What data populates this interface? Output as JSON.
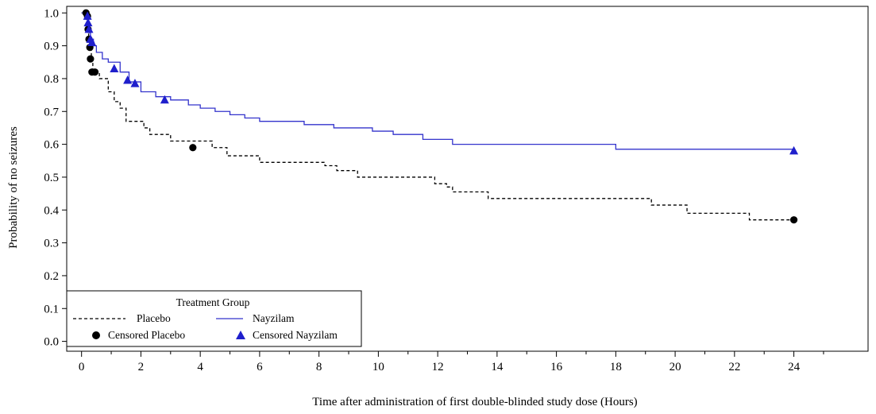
{
  "chart_data": {
    "type": "line",
    "xlabel": "Time after administration of first double-blinded study dose (Hours)",
    "ylabel": "Probability of no seizures",
    "xlim": [
      -0.5,
      26.5
    ],
    "ylim": [
      -0.03,
      1.02
    ],
    "x_ticks": [
      0,
      2,
      4,
      6,
      8,
      10,
      12,
      14,
      16,
      18,
      20,
      22,
      24
    ],
    "x_tick_labels": [
      "0",
      "2",
      "4",
      "6",
      "8",
      "10",
      "12",
      "14",
      "16",
      "18",
      "20",
      "22",
      "24"
    ],
    "y_ticks": [
      0.0,
      0.1,
      0.2,
      0.3,
      0.4,
      0.5,
      0.6,
      0.7,
      0.8,
      0.9,
      1.0
    ],
    "y_tick_labels": [
      "0.0",
      "0.1",
      "0.2",
      "0.3",
      "0.4",
      "0.5",
      "0.6",
      "0.7",
      "0.8",
      "0.9",
      "1.0"
    ],
    "grid": false,
    "legend": {
      "title": "Treatment Group",
      "placement": "bottom-left",
      "entries": [
        "Placebo",
        "Nayzilam",
        "Censored Placebo",
        "Censored Nayzilam"
      ]
    },
    "series": [
      {
        "name": "Placebo",
        "style": "dashed-step",
        "color": "#000000",
        "x": [
          0.0,
          0.2,
          0.24,
          0.28,
          0.33,
          0.38,
          0.6,
          0.9,
          1.1,
          1.3,
          1.5,
          2.1,
          2.3,
          3.0,
          4.4,
          4.9,
          6.0,
          8.2,
          8.6,
          9.3,
          11.9,
          12.3,
          12.5,
          13.5,
          13.7,
          19.2,
          19.6,
          20.4,
          22.5,
          24.0
        ],
        "y": [
          1.0,
          0.95,
          0.92,
          0.89,
          0.86,
          0.82,
          0.8,
          0.76,
          0.73,
          0.71,
          0.67,
          0.65,
          0.63,
          0.61,
          0.59,
          0.565,
          0.545,
          0.535,
          0.52,
          0.5,
          0.48,
          0.47,
          0.455,
          0.455,
          0.435,
          0.415,
          0.415,
          0.39,
          0.37,
          0.37
        ]
      },
      {
        "name": "Nayzilam",
        "style": "solid-step",
        "color": "#3333cc",
        "x": [
          0.0,
          0.15,
          0.2,
          0.25,
          0.3,
          0.4,
          0.5,
          0.7,
          0.9,
          1.3,
          1.6,
          2.0,
          2.5,
          3.0,
          3.6,
          4.0,
          4.5,
          5.0,
          5.5,
          6.0,
          7.5,
          8.5,
          9.8,
          10.5,
          11.5,
          12.5,
          18.0,
          24.0
        ],
        "y": [
          1.0,
          0.98,
          0.96,
          0.94,
          0.92,
          0.9,
          0.88,
          0.86,
          0.85,
          0.82,
          0.79,
          0.76,
          0.745,
          0.735,
          0.72,
          0.71,
          0.7,
          0.69,
          0.68,
          0.67,
          0.66,
          0.65,
          0.64,
          0.63,
          0.615,
          0.6,
          0.585,
          0.58
        ]
      }
    ],
    "censored": [
      {
        "name": "Censored Placebo",
        "marker": "circle",
        "color": "#000000",
        "points": [
          [
            0.15,
            1.0
          ],
          [
            0.2,
            0.99
          ],
          [
            0.22,
            0.95
          ],
          [
            0.25,
            0.92
          ],
          [
            0.28,
            0.895
          ],
          [
            0.3,
            0.86
          ],
          [
            0.35,
            0.82
          ],
          [
            0.45,
            0.82
          ],
          [
            3.75,
            0.59
          ],
          [
            24.0,
            0.37
          ]
        ]
      },
      {
        "name": "Censored Nayzilam",
        "marker": "triangle",
        "color": "#1f1fcc",
        "points": [
          [
            0.2,
            0.99
          ],
          [
            0.22,
            0.97
          ],
          [
            0.25,
            0.95
          ],
          [
            0.3,
            0.92
          ],
          [
            0.35,
            0.91
          ],
          [
            1.1,
            0.83
          ],
          [
            1.55,
            0.795
          ],
          [
            1.8,
            0.785
          ],
          [
            2.8,
            0.735
          ],
          [
            24.0,
            0.58
          ]
        ]
      }
    ]
  }
}
